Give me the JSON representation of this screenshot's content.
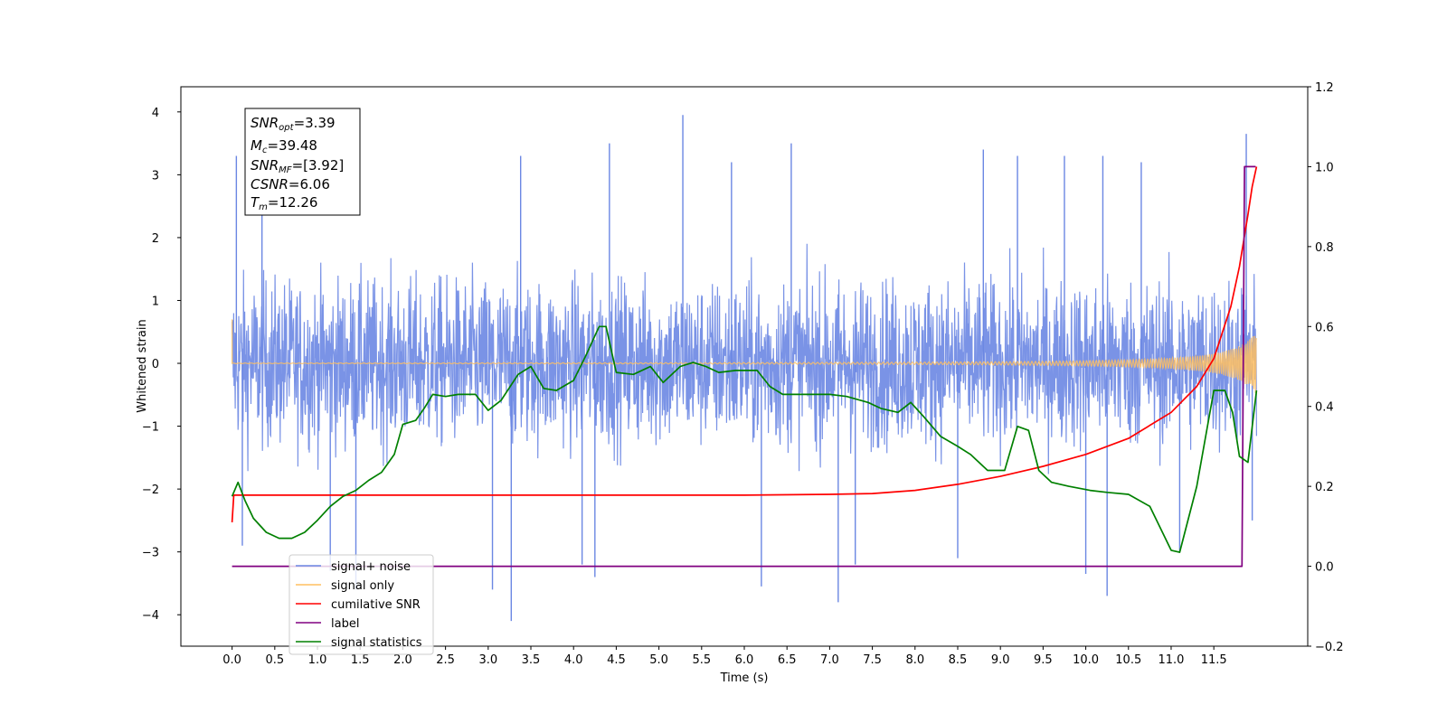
{
  "chart_data": {
    "type": "line",
    "xlabel": "Time (s)",
    "ylabel": "Whitened strain",
    "xlim": [
      -0.6,
      12.6
    ],
    "ylim": [
      -4.5,
      4.4
    ],
    "y2lim": [
      -0.2,
      1.2
    ],
    "x_ticks": [
      0.0,
      0.5,
      1.0,
      1.5,
      2.0,
      2.5,
      3.0,
      3.5,
      4.0,
      4.5,
      5.0,
      5.5,
      6.0,
      6.5,
      7.0,
      7.5,
      8.0,
      8.5,
      9.0,
      9.5,
      10.0,
      10.5,
      11.0,
      11.5
    ],
    "x_tick_labels": [
      "0.0",
      "0.5",
      "1.0",
      "1.5",
      "2.0",
      "2.5",
      "3.0",
      "3.5",
      "4.0",
      "4.5",
      "5.0",
      "5.5",
      "6.0",
      "6.5",
      "7.0",
      "7.5",
      "8.0",
      "8.5",
      "9.0",
      "9.5",
      "10.0",
      "10.5",
      "11.0",
      "11.5"
    ],
    "y_ticks": [
      -4,
      -3,
      -2,
      -1,
      0,
      1,
      2,
      3,
      4
    ],
    "y_tick_labels": [
      "−4",
      "−3",
      "−2",
      "−1",
      "0",
      "1",
      "2",
      "3",
      "4"
    ],
    "y2_ticks": [
      -0.2,
      0.0,
      0.2,
      0.4,
      0.6,
      0.8,
      1.0,
      1.2
    ],
    "y2_tick_labels": [
      "−0.2",
      "0.0",
      "0.2",
      "0.4",
      "0.6",
      "0.8",
      "1.0",
      "1.2"
    ],
    "info_box": {
      "lines": [
        {
          "base": "SNR",
          "sub": "opt",
          "value": "=3.39"
        },
        {
          "base": "M",
          "sub": "c",
          "value": "=39.48"
        },
        {
          "base": "SNR",
          "sub": "MF",
          "value": "=[3.92]"
        },
        {
          "base": "CSNR",
          "sub": "",
          "value": "=6.06"
        },
        {
          "base": "T",
          "sub": "m",
          "value": "=12.26"
        }
      ]
    },
    "legend": {
      "placement": "lower-left",
      "entries": [
        {
          "label": "signal+ noise",
          "color": "#6b87e3"
        },
        {
          "label": "signal only",
          "color": "#ffbf60"
        },
        {
          "label": "cumilative SNR",
          "color": "#ff0000"
        },
        {
          "label": "label",
          "color": "#800080"
        },
        {
          "label": "signal statistics",
          "color": "#008000"
        }
      ]
    },
    "series": [
      {
        "name": "signal+ noise",
        "axis": "left",
        "color": "#6b87e3",
        "x_range": [
          0.0,
          12.0
        ],
        "envelope_typical": 1.7,
        "spikes": [
          {
            "x": 0.05,
            "y": 3.3
          },
          {
            "x": 0.12,
            "y": -2.9
          },
          {
            "x": 0.35,
            "y": 2.8
          },
          {
            "x": 1.15,
            "y": -3.3
          },
          {
            "x": 1.45,
            "y": -3.6
          },
          {
            "x": 3.05,
            "y": -3.6
          },
          {
            "x": 3.27,
            "y": -4.1
          },
          {
            "x": 3.38,
            "y": 3.3
          },
          {
            "x": 4.1,
            "y": -3.2
          },
          {
            "x": 4.25,
            "y": -3.4
          },
          {
            "x": 4.42,
            "y": 3.5
          },
          {
            "x": 5.28,
            "y": 3.95
          },
          {
            "x": 5.85,
            "y": 3.2
          },
          {
            "x": 6.2,
            "y": -3.55
          },
          {
            "x": 6.55,
            "y": 3.5
          },
          {
            "x": 7.1,
            "y": -3.8
          },
          {
            "x": 7.3,
            "y": -3.2
          },
          {
            "x": 8.5,
            "y": -3.1
          },
          {
            "x": 8.8,
            "y": 3.4
          },
          {
            "x": 9.2,
            "y": 3.3
          },
          {
            "x": 9.75,
            "y": 3.3
          },
          {
            "x": 10.0,
            "y": -3.35
          },
          {
            "x": 10.2,
            "y": 3.3
          },
          {
            "x": 10.25,
            "y": -3.7
          },
          {
            "x": 10.65,
            "y": 3.2
          },
          {
            "x": 11.1,
            "y": -3.0
          },
          {
            "x": 11.88,
            "y": 3.65
          },
          {
            "x": 11.95,
            "y": -2.5
          }
        ]
      },
      {
        "name": "signal only",
        "axis": "left",
        "color": "#ffbf60",
        "x_range": [
          0.0,
          12.0
        ],
        "initial_spike": 0.7,
        "chirp_end_amplitude": 0.5,
        "chirp_end_time": 12.0
      },
      {
        "name": "cumilative SNR",
        "axis": "right",
        "color": "#ff0000",
        "x": [
          0.0,
          0.02,
          1.0,
          2.0,
          3.0,
          4.0,
          5.0,
          6.0,
          7.0,
          7.5,
          8.0,
          8.5,
          9.0,
          9.5,
          10.0,
          10.5,
          11.0,
          11.3,
          11.5,
          11.7,
          11.8,
          11.9,
          11.95,
          12.0
        ],
        "y": [
          0.11,
          0.178,
          0.178,
          0.178,
          0.178,
          0.178,
          0.178,
          0.178,
          0.18,
          0.182,
          0.19,
          0.205,
          0.225,
          0.25,
          0.28,
          0.32,
          0.385,
          0.45,
          0.52,
          0.65,
          0.75,
          0.88,
          0.95,
          1.0
        ]
      },
      {
        "name": "label",
        "axis": "right",
        "color": "#800080",
        "x": [
          0.0,
          11.83,
          11.86,
          11.99
        ],
        "y": [
          0.0,
          0.0,
          1.0,
          1.0
        ]
      },
      {
        "name": "signal statistics",
        "axis": "right",
        "color": "#008000",
        "x": [
          0.0,
          0.07,
          0.15,
          0.25,
          0.4,
          0.55,
          0.7,
          0.85,
          1.0,
          1.15,
          1.3,
          1.45,
          1.6,
          1.75,
          1.9,
          2.0,
          2.15,
          2.25,
          2.35,
          2.5,
          2.65,
          2.85,
          3.0,
          3.15,
          3.35,
          3.5,
          3.65,
          3.8,
          4.0,
          4.15,
          4.3,
          4.38,
          4.5,
          4.7,
          4.9,
          5.05,
          5.25,
          5.4,
          5.55,
          5.7,
          5.9,
          6.05,
          6.15,
          6.3,
          6.45,
          6.7,
          6.85,
          7.0,
          7.2,
          7.45,
          7.6,
          7.8,
          7.95,
          8.1,
          8.3,
          8.5,
          8.65,
          8.85,
          9.05,
          9.2,
          9.33,
          9.45,
          9.6,
          9.8,
          10.05,
          10.25,
          10.5,
          10.75,
          11.0,
          11.1,
          11.3,
          11.5,
          11.63,
          11.72,
          11.8,
          11.9,
          12.0
        ],
        "y": [
          0.175,
          0.21,
          0.165,
          0.12,
          0.085,
          0.07,
          0.07,
          0.085,
          0.115,
          0.15,
          0.175,
          0.19,
          0.215,
          0.235,
          0.28,
          0.355,
          0.365,
          0.395,
          0.43,
          0.425,
          0.43,
          0.43,
          0.39,
          0.415,
          0.48,
          0.5,
          0.445,
          0.44,
          0.465,
          0.53,
          0.6,
          0.6,
          0.485,
          0.48,
          0.5,
          0.46,
          0.5,
          0.51,
          0.5,
          0.485,
          0.49,
          0.49,
          0.49,
          0.45,
          0.43,
          0.43,
          0.43,
          0.43,
          0.425,
          0.41,
          0.395,
          0.385,
          0.41,
          0.375,
          0.325,
          0.3,
          0.28,
          0.24,
          0.24,
          0.35,
          0.34,
          0.24,
          0.21,
          0.2,
          0.19,
          0.185,
          0.18,
          0.15,
          0.04,
          0.035,
          0.2,
          0.44,
          0.44,
          0.385,
          0.275,
          0.26,
          0.44
        ]
      }
    ]
  }
}
